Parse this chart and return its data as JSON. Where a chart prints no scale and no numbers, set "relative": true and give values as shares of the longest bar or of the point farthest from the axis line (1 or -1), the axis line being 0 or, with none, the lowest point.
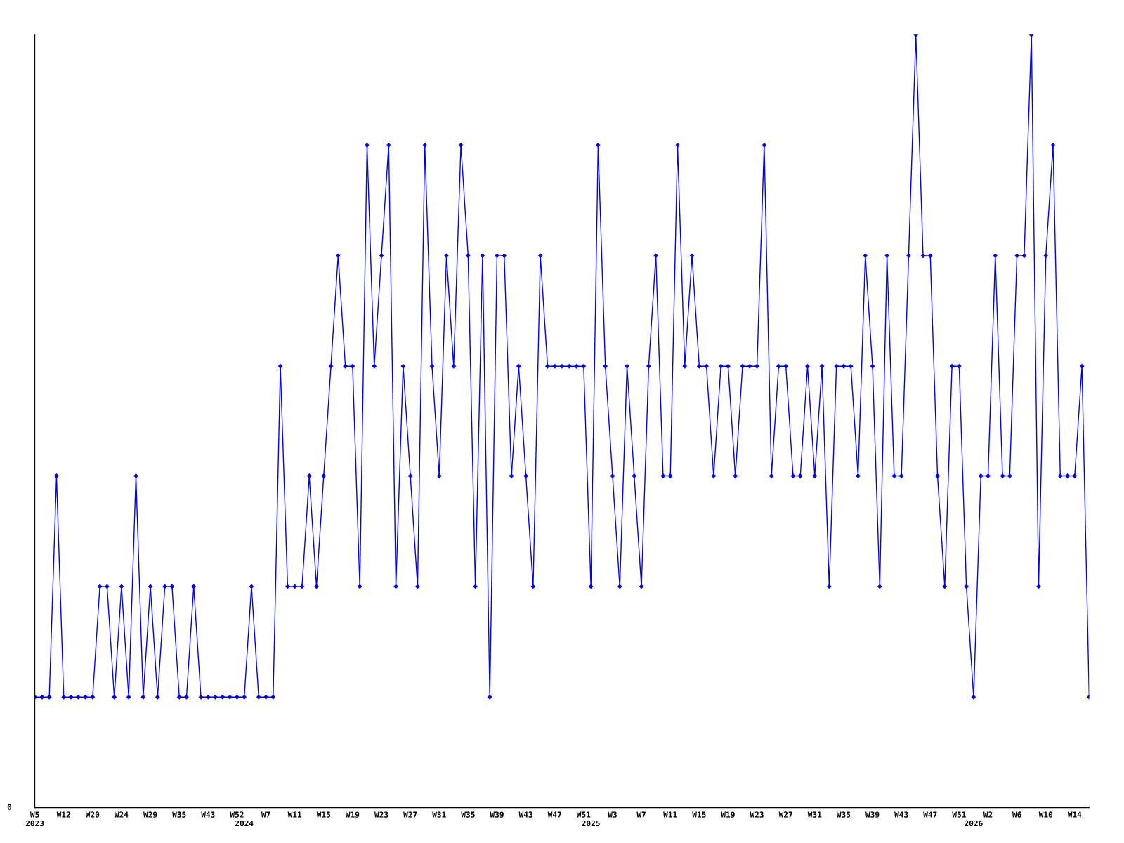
{
  "chart_data": {
    "type": "line",
    "relative": true,
    "marker": "diamond",
    "line_style": "solid",
    "grid": false,
    "categories": [
      "W5\n2023",
      null,
      null,
      null,
      "W12",
      null,
      null,
      null,
      "W20",
      null,
      null,
      null,
      "W24",
      null,
      null,
      null,
      "W29",
      null,
      null,
      null,
      "W35",
      null,
      null,
      null,
      "W43",
      null,
      null,
      null,
      "W52",
      "\n2024",
      null,
      null,
      "W7",
      null,
      null,
      null,
      "W11",
      null,
      null,
      null,
      "W15",
      null,
      null,
      null,
      "W19",
      null,
      null,
      null,
      "W23",
      null,
      null,
      null,
      "W27",
      null,
      null,
      null,
      "W31",
      null,
      null,
      null,
      "W35",
      null,
      null,
      null,
      "W39",
      null,
      null,
      null,
      "W43",
      null,
      null,
      null,
      "W47",
      null,
      null,
      null,
      "W51",
      "\n2025",
      null,
      null,
      "W3",
      null,
      null,
      null,
      "W7",
      null,
      null,
      null,
      "W11",
      null,
      null,
      null,
      "W15",
      null,
      null,
      null,
      "W19",
      null,
      null,
      null,
      "W23",
      null,
      null,
      null,
      "W27",
      null,
      null,
      null,
      "W31",
      null,
      null,
      null,
      "W35",
      null,
      null,
      null,
      "W39",
      null,
      null,
      null,
      "W43",
      null,
      null,
      null,
      "W47",
      null,
      null,
      null,
      "W51",
      null,
      "\n2026",
      null,
      "W2",
      null,
      null,
      null,
      "W6",
      null,
      null,
      null,
      "W10",
      null,
      null,
      null,
      "W14",
      null,
      null
    ],
    "series": [
      {
        "color": "#0000ff",
        "values": [
          0.143,
          0.143,
          0.143,
          0.429,
          0.143,
          0.143,
          0.143,
          0.143,
          0.143,
          0.286,
          0.286,
          0.143,
          0.286,
          0.143,
          0.429,
          0.143,
          0.286,
          0.143,
          0.286,
          0.286,
          0.143,
          0.143,
          0.286,
          0.143,
          0.143,
          0.143,
          0.143,
          0.143,
          0.143,
          0.143,
          0.286,
          0.143,
          0.143,
          0.143,
          0.571,
          0.286,
          0.286,
          0.286,
          0.429,
          0.286,
          0.429,
          0.571,
          0.714,
          0.571,
          0.571,
          0.286,
          0.857,
          0.571,
          0.714,
          0.857,
          0.286,
          0.571,
          0.429,
          0.286,
          0.857,
          0.571,
          0.429,
          0.714,
          0.571,
          0.857,
          0.714,
          0.286,
          0.714,
          0.143,
          0.714,
          0.714,
          0.429,
          0.571,
          0.429,
          0.286,
          0.714,
          0.571,
          0.571,
          0.571,
          0.571,
          0.571,
          0.571,
          0.286,
          0.857,
          0.571,
          0.429,
          0.286,
          0.571,
          0.429,
          0.286,
          0.571,
          0.714,
          0.429,
          0.429,
          0.857,
          0.571,
          0.714,
          0.571,
          0.571,
          0.429,
          0.571,
          0.571,
          0.429,
          0.571,
          0.571,
          0.571,
          0.857,
          0.429,
          0.571,
          0.571,
          0.429,
          0.429,
          0.571,
          0.429,
          0.571,
          0.286,
          0.571,
          0.571,
          0.571,
          0.429,
          0.714,
          0.571,
          0.286,
          0.714,
          0.429,
          0.429,
          0.714,
          1,
          0.714,
          0.714,
          0.429,
          0.286,
          0.571,
          0.571,
          0.286,
          0.143,
          0.429,
          0.429,
          0.714,
          0.429,
          0.429,
          0.714,
          0.714,
          1,
          0.286,
          0.714,
          0.857,
          0.429,
          0.429,
          0.429,
          0.571,
          0.143
        ]
      }
    ],
    "annotations": [
      "0"
    ]
  }
}
